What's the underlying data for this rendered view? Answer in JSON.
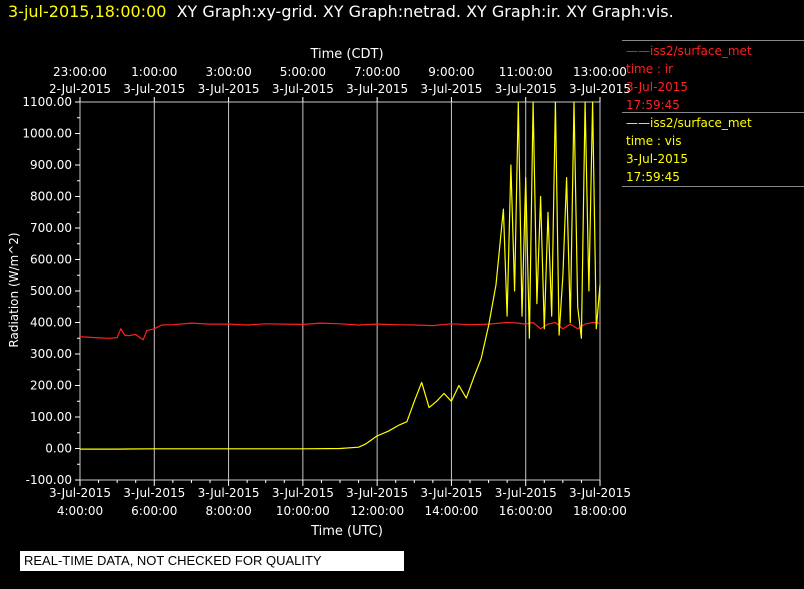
{
  "header": {
    "datetime": "3-jul-2015,18:00:00",
    "graphs": "XY Graph:xy-grid.  XY Graph:netrad.  XY Graph:ir.  XY Graph:vis."
  },
  "legend": {
    "ir": {
      "source": "iss2/surface_met",
      "variable": "time : ir",
      "date": "3-Jul-2015",
      "time": "17:59:45",
      "color": "#ff2020"
    },
    "vis": {
      "source": "iss2/surface_met",
      "variable": "time : vis",
      "date": "3-Jul-2015",
      "time": "17:59:45",
      "color": "#ffff00"
    }
  },
  "notice": "REAL-TIME DATA, NOT CHECKED FOR QUALITY",
  "chart_data": {
    "type": "line",
    "ylabel": "Radiation (W/m^2)",
    "xlabel_bottom": "Time (UTC)",
    "xlabel_top": "Time (CDT)",
    "ylim": [
      -100,
      1100
    ],
    "xlim_hours_utc": [
      4.0,
      18.0
    ],
    "yticks": [
      "1100.00",
      "1000.00",
      "900.00",
      "800.00",
      "700.00",
      "600.00",
      "500.00",
      "400.00",
      "300.00",
      "200.00",
      "100.00",
      "0.00",
      "-100.00"
    ],
    "yticks_values": [
      1100,
      1000,
      900,
      800,
      700,
      600,
      500,
      400,
      300,
      200,
      100,
      0,
      -100
    ],
    "xticks_bottom": [
      {
        "date": "3-Jul-2015",
        "time": "4:00:00",
        "h": 4
      },
      {
        "date": "3-Jul-2015",
        "time": "6:00:00",
        "h": 6
      },
      {
        "date": "3-Jul-2015",
        "time": "8:00:00",
        "h": 8
      },
      {
        "date": "3-Jul-2015",
        "time": "10:00:00",
        "h": 10
      },
      {
        "date": "3-Jul-2015",
        "time": "12:00:00",
        "h": 12
      },
      {
        "date": "3-Jul-2015",
        "time": "14:00:00",
        "h": 14
      },
      {
        "date": "3-Jul-2015",
        "time": "16:00:00",
        "h": 16
      },
      {
        "date": "3-Jul-2015",
        "time": "18:00:00",
        "h": 18
      }
    ],
    "xticks_top": [
      {
        "time": "23:00:00",
        "date": "2-Jul-2015",
        "h": 4
      },
      {
        "time": "1:00:00",
        "date": "3-Jul-2015",
        "h": 6
      },
      {
        "time": "3:00:00",
        "date": "3-Jul-2015",
        "h": 8
      },
      {
        "time": "5:00:00",
        "date": "3-Jul-2015",
        "h": 10
      },
      {
        "time": "7:00:00",
        "date": "3-Jul-2015",
        "h": 12
      },
      {
        "time": "9:00:00",
        "date": "3-Jul-2015",
        "h": 14
      },
      {
        "time": "11:00:00",
        "date": "3-Jul-2015",
        "h": 16
      },
      {
        "time": "13:00:00",
        "date": "3-Jul-2015",
        "h": 18
      }
    ],
    "grid": true,
    "series": [
      {
        "name": "ir",
        "color": "#ff2020",
        "x": [
          4.0,
          4.4,
          4.8,
          5.0,
          5.1,
          5.2,
          5.3,
          5.5,
          5.7,
          5.8,
          6.0,
          6.2,
          6.5,
          7.0,
          7.5,
          8.0,
          8.5,
          9.0,
          9.5,
          10.0,
          10.5,
          11.0,
          11.5,
          12.0,
          12.5,
          13.0,
          13.5,
          14.0,
          14.5,
          15.0,
          15.5,
          15.8,
          16.0,
          16.2,
          16.4,
          16.6,
          16.8,
          17.0,
          17.2,
          17.4,
          17.6,
          17.8,
          18.0
        ],
        "y": [
          355,
          352,
          350,
          352,
          380,
          360,
          358,
          362,
          345,
          375,
          380,
          392,
          393,
          398,
          395,
          395,
          392,
          396,
          395,
          394,
          398,
          396,
          392,
          395,
          393,
          392,
          390,
          396,
          393,
          395,
          400,
          398,
          395,
          400,
          380,
          395,
          400,
          380,
          395,
          380,
          395,
          400,
          398
        ]
      },
      {
        "name": "vis",
        "color": "#ffff00",
        "x": [
          4.0,
          5.0,
          6.0,
          7.0,
          8.0,
          9.0,
          10.0,
          11.0,
          11.5,
          11.7,
          12.0,
          12.3,
          12.6,
          12.8,
          13.0,
          13.2,
          13.4,
          13.6,
          13.8,
          14.0,
          14.2,
          14.4,
          14.6,
          14.8,
          15.0,
          15.2,
          15.4,
          15.5,
          15.6,
          15.7,
          15.8,
          15.9,
          16.0,
          16.1,
          16.2,
          16.3,
          16.4,
          16.5,
          16.6,
          16.7,
          16.8,
          16.9,
          17.0,
          17.1,
          17.2,
          17.3,
          17.4,
          17.5,
          17.6,
          17.7,
          17.8,
          17.9,
          18.0
        ],
        "y": [
          -2,
          -2,
          -1,
          -1,
          -1,
          -1,
          -1,
          0,
          4,
          15,
          40,
          55,
          75,
          85,
          150,
          210,
          130,
          150,
          175,
          150,
          200,
          160,
          225,
          285,
          390,
          520,
          760,
          420,
          900,
          500,
          1100,
          420,
          860,
          350,
          1100,
          460,
          800,
          380,
          750,
          420,
          1100,
          360,
          550,
          860,
          400,
          1100,
          450,
          350,
          1100,
          500,
          1100,
          380,
          520
        ]
      }
    ]
  }
}
